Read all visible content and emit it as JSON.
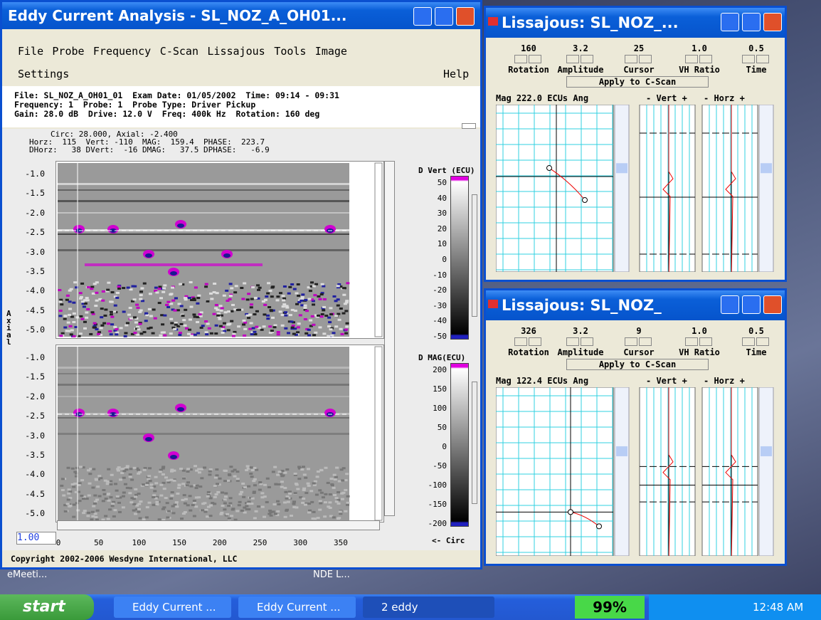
{
  "main": {
    "title": "Eddy Current Analysis - SL_NOZ_A_OH01...",
    "menu": [
      "File",
      "Probe",
      "Frequency",
      "C-Scan",
      "Lissajous",
      "Tools",
      "Image"
    ],
    "settings": "Settings",
    "help": "Help",
    "info": [
      "File: SL_NOZ_A_OH01_01  Exam Date: 01/05/2002  Time: 09:14 - 09:31",
      "Frequency: 1  Probe: 1  Probe Type: Driver Pickup",
      "Gain: 28.0 dB  Drive: 12.0 V  Freq: 400k Hz  Rotation: 160 deg"
    ],
    "cursor": [
      "Circ: 28.000, Axial: -2.400",
      "Horz:  115  Vert: -110  MAG:  159.4  PHASE:  223.7",
      "DHorz:   38 DVert:  -16 DMAG:   37.5 DPHASE:   -6.9"
    ],
    "axial_label": "Axial",
    "scan1_ticks": [
      "-1.0",
      "-1.5",
      "-2.0",
      "-2.5",
      "-3.0",
      "-3.5",
      "-4.0",
      "-4.5",
      "-5.0"
    ],
    "scan2_ticks": [
      "-1.0",
      "-1.5",
      "-2.0",
      "-2.5",
      "-3.0",
      "-3.5",
      "-4.0",
      "-4.5",
      "-5.0"
    ],
    "colorbar1": {
      "title": "D Vert (ECU)",
      "ticks": [
        "50",
        "40",
        "30",
        "20",
        "10",
        "0",
        "-10",
        "-20",
        "-30",
        "-40",
        "-50"
      ]
    },
    "colorbar2": {
      "title": "D MAG(ECU)",
      "ticks": [
        "200",
        "150",
        "100",
        "50",
        "0",
        "-50",
        "-100",
        "-150",
        "-200"
      ]
    },
    "zoom": "1.00",
    "x_ticks": [
      "0",
      "50",
      "100",
      "150",
      "200",
      "250",
      "300",
      "350"
    ],
    "circ_label": "<- Circ",
    "copyright": "Copyright 2002-2006 Wesdyne International, LLC"
  },
  "lissajous": [
    {
      "title": "Lissajous: SL_NOZ_...",
      "controls": [
        {
          "value": "160",
          "label": "Rotation"
        },
        {
          "value": "3.2",
          "label": "Amplitude"
        },
        {
          "value": "25",
          "label": "Cursor"
        },
        {
          "value": "1.0",
          "label": "VH Ratio"
        },
        {
          "value": "0.5",
          "label": "Time"
        }
      ],
      "apply": "Apply to C-Scan",
      "mag": "Mag 222.0 ECUs Ang",
      "vert": "- Vert +",
      "horz": "- Horz +"
    },
    {
      "title": "Lissajous: SL_NOZ_",
      "controls": [
        {
          "value": "326",
          "label": "Rotation"
        },
        {
          "value": "3.2",
          "label": "Amplitude"
        },
        {
          "value": "9",
          "label": "Cursor"
        },
        {
          "value": "1.0",
          "label": "VH Ratio"
        },
        {
          "value": "0.5",
          "label": "Time"
        }
      ],
      "apply": "Apply to C-Scan",
      "mag": "Mag 122.4 ECUs Ang",
      "vert": "- Vert +",
      "horz": "- Horz +"
    }
  ],
  "desktop": {
    "icons": [
      "eMeeti...",
      "NDE L..."
    ]
  },
  "taskbar": {
    "start": "start",
    "tasks": [
      "Eddy Current ...",
      "Eddy Current ...",
      "2 eddy"
    ],
    "battery": "99%",
    "clock": "12:48 AM"
  }
}
